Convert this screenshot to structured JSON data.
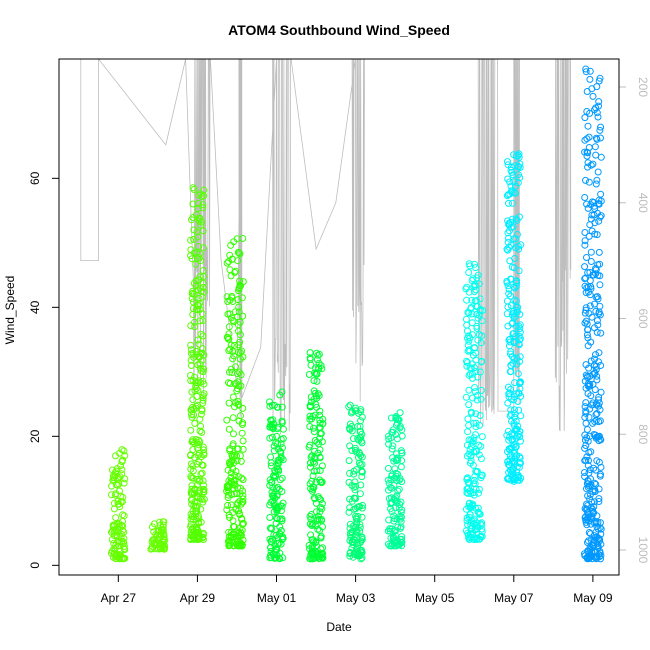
{
  "chart_data": {
    "type": "scatter",
    "title": "ATOM4 Southbound Wind_Speed",
    "xlabel": "Date",
    "ylabel": "Wind_Speed",
    "x_ticks": [
      "Apr 27",
      "Apr 29",
      "May 01",
      "May 03",
      "May 05",
      "May 07",
      "May 09"
    ],
    "y_ticks": [
      "0",
      "20",
      "40",
      "60"
    ],
    "y_right_ticks": [
      "200",
      "400",
      "600",
      "800",
      "1000"
    ],
    "xlim": [
      "2008-04-26",
      "2008-05-10"
    ],
    "ylim": [
      0,
      80
    ],
    "y_right_lim": [
      1050,
      150
    ],
    "y_right_axis": "pressure, inverted",
    "grid": false,
    "marker": "open circle",
    "colors": {
      "early": "#66ff00",
      "mid": "#00ff44",
      "late_mid": "#00ffcc",
      "late": "#00ccff",
      "last": "#0099ff",
      "pressure_trace": "#bdbdbd",
      "axis": "#000000",
      "right_axis": "#bdbdbd"
    },
    "series": [
      {
        "date": "2008-04-27",
        "y_min": 1,
        "y_max": 18,
        "color": "#66ff00"
      },
      {
        "date": "2008-04-28",
        "y_min": 2.5,
        "y_max": 7,
        "color": "#66ff00"
      },
      {
        "date": "2008-04-29",
        "y_min": 4,
        "y_max": 61,
        "color": "#55ff00"
      },
      {
        "date": "2008-04-30",
        "y_min": 3,
        "y_max": 51,
        "color": "#33ff00"
      },
      {
        "date": "2008-05-01",
        "y_min": 1,
        "y_max": 27,
        "color": "#00ff33"
      },
      {
        "date": "2008-05-02",
        "y_min": 1,
        "y_max": 33,
        "color": "#00ff33"
      },
      {
        "date": "2008-05-03",
        "y_min": 1,
        "y_max": 25,
        "color": "#00ff77"
      },
      {
        "date": "2008-05-04",
        "y_min": 3,
        "y_max": 24,
        "color": "#00ff99"
      },
      {
        "date": "2008-05-06",
        "y_min": 4,
        "y_max": 47,
        "color": "#00ffee"
      },
      {
        "date": "2008-05-07",
        "y_min": 13,
        "y_max": 64,
        "color": "#00eeff"
      },
      {
        "date": "2008-05-09",
        "y_min": 1,
        "y_max": 77,
        "color": "#0099ff"
      }
    ]
  }
}
